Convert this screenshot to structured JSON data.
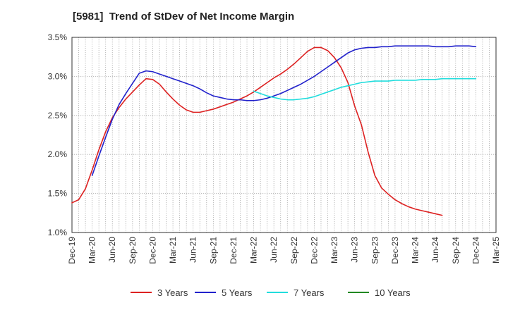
{
  "chart_data": {
    "type": "line",
    "title": "[5981]  Trend of StDev of Net Income Margin",
    "xlabel": "",
    "ylabel": "",
    "x_tick_labels": [
      "Dec-19",
      "Mar-20",
      "Jun-20",
      "Sep-20",
      "Dec-20",
      "Mar-21",
      "Jun-21",
      "Sep-21",
      "Dec-21",
      "Mar-22",
      "Jun-22",
      "Sep-22",
      "Dec-22",
      "Mar-23",
      "Jun-23",
      "Sep-23",
      "Dec-23",
      "Mar-24",
      "Jun-24",
      "Sep-24",
      "Dec-24",
      "Mar-25"
    ],
    "y_tick_labels": [
      "1.0%",
      "1.5%",
      "2.0%",
      "2.5%",
      "3.0%",
      "3.5%"
    ],
    "ylim": [
      1.0,
      3.5
    ],
    "y_unit": "%",
    "grid": true,
    "legend_position": "bottom",
    "series": [
      {
        "name": "3 Years",
        "color": "#dd2222",
        "points": [
          [
            "Dec-19",
            1.38
          ],
          [
            "Jan-20",
            1.42
          ],
          [
            "Feb-20",
            1.56
          ],
          [
            "Mar-20",
            1.8
          ],
          [
            "Apr-20",
            2.06
          ],
          [
            "May-20",
            2.29
          ],
          [
            "Jun-20",
            2.47
          ],
          [
            "Jul-20",
            2.6
          ],
          [
            "Aug-20",
            2.71
          ],
          [
            "Sep-20",
            2.8
          ],
          [
            "Oct-20",
            2.89
          ],
          [
            "Nov-20",
            2.97
          ],
          [
            "Dec-20",
            2.96
          ],
          [
            "Jan-21",
            2.9
          ],
          [
            "Feb-21",
            2.8
          ],
          [
            "Mar-21",
            2.71
          ],
          [
            "Apr-21",
            2.63
          ],
          [
            "May-21",
            2.57
          ],
          [
            "Jun-21",
            2.54
          ],
          [
            "Jul-21",
            2.54
          ],
          [
            "Aug-21",
            2.56
          ],
          [
            "Sep-21",
            2.58
          ],
          [
            "Oct-21",
            2.61
          ],
          [
            "Nov-21",
            2.64
          ],
          [
            "Dec-21",
            2.67
          ],
          [
            "Jan-22",
            2.71
          ],
          [
            "Feb-22",
            2.75
          ],
          [
            "Mar-22",
            2.8
          ],
          [
            "Apr-22",
            2.86
          ],
          [
            "May-22",
            2.92
          ],
          [
            "Jun-22",
            2.98
          ],
          [
            "Jul-22",
            3.03
          ],
          [
            "Aug-22",
            3.09
          ],
          [
            "Sep-22",
            3.16
          ],
          [
            "Oct-22",
            3.24
          ],
          [
            "Nov-22",
            3.32
          ],
          [
            "Dec-22",
            3.37
          ],
          [
            "Jan-23",
            3.37
          ],
          [
            "Feb-23",
            3.33
          ],
          [
            "Mar-23",
            3.24
          ],
          [
            "Apr-23",
            3.11
          ],
          [
            "May-23",
            2.92
          ],
          [
            "Jun-23",
            2.62
          ],
          [
            "Jul-23",
            2.38
          ],
          [
            "Aug-23",
            2.03
          ],
          [
            "Sep-23",
            1.73
          ],
          [
            "Oct-23",
            1.57
          ],
          [
            "Nov-23",
            1.49
          ],
          [
            "Dec-23",
            1.42
          ],
          [
            "Jan-24",
            1.37
          ],
          [
            "Feb-24",
            1.33
          ],
          [
            "Mar-24",
            1.3
          ],
          [
            "Apr-24",
            1.28
          ],
          [
            "May-24",
            1.26
          ],
          [
            "Jun-24",
            1.24
          ],
          [
            "Jul-24",
            1.22
          ]
        ]
      },
      {
        "name": "5 Years",
        "color": "#2222cc",
        "points": [
          [
            "Mar-20",
            1.73
          ],
          [
            "Apr-20",
            1.98
          ],
          [
            "May-20",
            2.22
          ],
          [
            "Jun-20",
            2.45
          ],
          [
            "Jul-20",
            2.64
          ],
          [
            "Aug-20",
            2.78
          ],
          [
            "Sep-20",
            2.91
          ],
          [
            "Oct-20",
            3.04
          ],
          [
            "Nov-20",
            3.07
          ],
          [
            "Dec-20",
            3.06
          ],
          [
            "Jan-21",
            3.03
          ],
          [
            "Feb-21",
            3.0
          ],
          [
            "Mar-21",
            2.97
          ],
          [
            "Apr-21",
            2.94
          ],
          [
            "May-21",
            2.91
          ],
          [
            "Jun-21",
            2.88
          ],
          [
            "Jul-21",
            2.84
          ],
          [
            "Aug-21",
            2.79
          ],
          [
            "Sep-21",
            2.75
          ],
          [
            "Oct-21",
            2.73
          ],
          [
            "Nov-21",
            2.71
          ],
          [
            "Dec-21",
            2.7
          ],
          [
            "Jan-22",
            2.7
          ],
          [
            "Feb-22",
            2.69
          ],
          [
            "Mar-22",
            2.69
          ],
          [
            "Apr-22",
            2.7
          ],
          [
            "May-22",
            2.72
          ],
          [
            "Jun-22",
            2.75
          ],
          [
            "Jul-22",
            2.78
          ],
          [
            "Aug-22",
            2.82
          ],
          [
            "Sep-22",
            2.86
          ],
          [
            "Oct-22",
            2.9
          ],
          [
            "Nov-22",
            2.95
          ],
          [
            "Dec-22",
            3.0
          ],
          [
            "Jan-23",
            3.06
          ],
          [
            "Feb-23",
            3.12
          ],
          [
            "Mar-23",
            3.18
          ],
          [
            "Apr-23",
            3.24
          ],
          [
            "May-23",
            3.3
          ],
          [
            "Jun-23",
            3.34
          ],
          [
            "Jul-23",
            3.36
          ],
          [
            "Aug-23",
            3.37
          ],
          [
            "Sep-23",
            3.37
          ],
          [
            "Oct-23",
            3.38
          ],
          [
            "Nov-23",
            3.38
          ],
          [
            "Dec-23",
            3.39
          ],
          [
            "Jan-24",
            3.39
          ],
          [
            "Feb-24",
            3.39
          ],
          [
            "Mar-24",
            3.39
          ],
          [
            "Apr-24",
            3.39
          ],
          [
            "May-24",
            3.39
          ],
          [
            "Jun-24",
            3.38
          ],
          [
            "Jul-24",
            3.38
          ],
          [
            "Aug-24",
            3.38
          ],
          [
            "Sep-24",
            3.39
          ],
          [
            "Oct-24",
            3.39
          ],
          [
            "Nov-24",
            3.39
          ],
          [
            "Dec-24",
            3.38
          ]
        ]
      },
      {
        "name": "7 Years",
        "color": "#22dddd",
        "points": [
          [
            "Mar-22",
            2.81
          ],
          [
            "Apr-22",
            2.78
          ],
          [
            "May-22",
            2.75
          ],
          [
            "Jun-22",
            2.73
          ],
          [
            "Jul-22",
            2.71
          ],
          [
            "Aug-22",
            2.7
          ],
          [
            "Sep-22",
            2.7
          ],
          [
            "Oct-22",
            2.71
          ],
          [
            "Nov-22",
            2.72
          ],
          [
            "Dec-22",
            2.74
          ],
          [
            "Jan-23",
            2.77
          ],
          [
            "Feb-23",
            2.8
          ],
          [
            "Mar-23",
            2.83
          ],
          [
            "Apr-23",
            2.86
          ],
          [
            "May-23",
            2.88
          ],
          [
            "Jun-23",
            2.9
          ],
          [
            "Jul-23",
            2.92
          ],
          [
            "Aug-23",
            2.93
          ],
          [
            "Sep-23",
            2.94
          ],
          [
            "Oct-23",
            2.94
          ],
          [
            "Nov-23",
            2.94
          ],
          [
            "Dec-23",
            2.95
          ],
          [
            "Jan-24",
            2.95
          ],
          [
            "Feb-24",
            2.95
          ],
          [
            "Mar-24",
            2.95
          ],
          [
            "Apr-24",
            2.96
          ],
          [
            "May-24",
            2.96
          ],
          [
            "Jun-24",
            2.96
          ],
          [
            "Jul-24",
            2.97
          ],
          [
            "Aug-24",
            2.97
          ],
          [
            "Sep-24",
            2.97
          ],
          [
            "Oct-24",
            2.97
          ],
          [
            "Nov-24",
            2.97
          ],
          [
            "Dec-24",
            2.97
          ]
        ]
      },
      {
        "name": "10 Years",
        "color": "#228822",
        "points": []
      }
    ]
  }
}
